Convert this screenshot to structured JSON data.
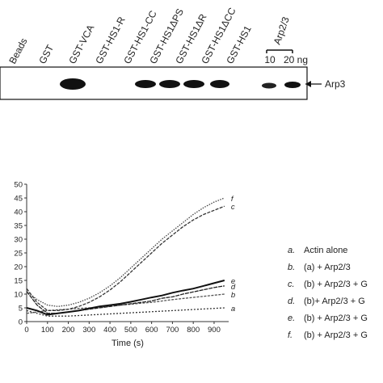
{
  "blot": {
    "lanes": [
      "Beads",
      "GST",
      "GST-VCA",
      "GST-HS1-R",
      "GST-HS1-CC",
      "GST-HS1ΔPS",
      "GST-HS1ΔR",
      "GST-HS1ΔCC",
      "GST-HS1"
    ],
    "standard": "Arp2/3",
    "amounts": [
      "10",
      "20 ng"
    ],
    "band_label": "Arp3"
  },
  "chart_data": {
    "type": "line",
    "x_label": "Time (s)",
    "x": [
      0,
      50,
      100,
      150,
      200,
      250,
      300,
      350,
      400,
      450,
      500,
      550,
      600,
      650,
      700,
      750,
      800,
      850,
      900,
      950
    ],
    "xlim": [
      0,
      970
    ],
    "xticks": [
      0,
      100,
      200,
      300,
      400,
      500,
      600,
      700,
      800,
      900
    ],
    "ylim": [
      0,
      50
    ],
    "yticks": [
      0,
      5,
      10,
      15,
      20,
      25,
      30,
      35,
      40,
      45,
      50
    ],
    "series": [
      {
        "name": "Actin alone",
        "letter": "a.",
        "end_label": "a",
        "color": "#333333",
        "dash": "2,2",
        "values": [
          4,
          3,
          2,
          2,
          2,
          2.2,
          2.4,
          2.6,
          2.8,
          3,
          3.2,
          3.4,
          3.6,
          3.8,
          4,
          4.2,
          4.4,
          4.6,
          4.8,
          5
        ]
      },
      {
        "name": "(a) + Arp2/3",
        "letter": "b.",
        "end_label": "b",
        "color": "#555555",
        "dash": "3,1.5",
        "values": [
          3,
          3.5,
          4,
          4.3,
          4.5,
          4.8,
          5,
          5.3,
          5.6,
          6,
          6.3,
          6.7,
          7,
          7.5,
          8,
          8.4,
          8.8,
          9.2,
          9.6,
          10
        ]
      },
      {
        "name": "(b) + Arp2/3 + G",
        "letter": "c.",
        "end_label": "c",
        "color": "#333333",
        "dash": "4,1.5",
        "values": [
          12,
          7,
          4,
          4,
          4.5,
          5.5,
          7,
          9,
          11.5,
          14.5,
          18,
          21.5,
          25,
          28.5,
          31.5,
          34.5,
          37,
          39,
          40.5,
          42
        ]
      },
      {
        "name": "(b)+ Arp2/3 + G",
        "letter": "d.",
        "end_label": "d",
        "color": "#222222",
        "dash": "5,1",
        "values": [
          11,
          6,
          3,
          3,
          3.5,
          4,
          4.5,
          5,
          5.5,
          6,
          6.5,
          7,
          7.5,
          8.5,
          9,
          10,
          10.8,
          11.6,
          12.4,
          13
        ]
      },
      {
        "name": "(b) + Arp2/3 + G",
        "letter": "e.",
        "end_label": "e",
        "color": "#111111",
        "dash": "",
        "values": [
          5,
          4,
          2.5,
          3,
          3.5,
          4,
          4.8,
          5.5,
          6,
          6.5,
          7.2,
          8,
          8.8,
          9.5,
          10.5,
          11.3,
          12,
          13,
          14,
          15
        ]
      },
      {
        "name": "(b) + Arp2/3 + G",
        "letter": "f.",
        "end_label": "f",
        "color": "#444444",
        "dash": "1.5,1.5",
        "values": [
          11,
          8,
          6,
          5.5,
          6,
          7,
          8.5,
          10.5,
          13,
          16,
          19.5,
          23,
          26.5,
          30,
          33,
          36,
          39,
          41.5,
          43.5,
          45
        ]
      }
    ]
  }
}
